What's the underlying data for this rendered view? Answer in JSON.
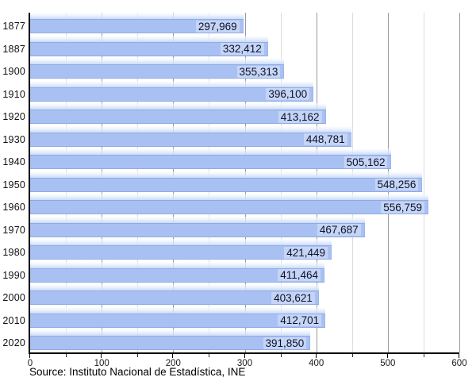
{
  "chart_data": {
    "type": "bar",
    "orientation": "horizontal",
    "title": "",
    "categories": [
      "1877",
      "1887",
      "1900",
      "1910",
      "1920",
      "1930",
      "1940",
      "1950",
      "1960",
      "1970",
      "1980",
      "1990",
      "2000",
      "2010",
      "2020"
    ],
    "values": [
      297969,
      332412,
      355313,
      396100,
      413162,
      448781,
      505162,
      548256,
      556759,
      467687,
      421449,
      411464,
      403621,
      412701,
      391850
    ],
    "value_labels": [
      "297,969",
      "332,412",
      "355,313",
      "396,100",
      "413,162",
      "448,781",
      "505,162",
      "548,256",
      "556,759",
      "467,687",
      "421,449",
      "411,464",
      "403,621",
      "412,701",
      "391,850"
    ],
    "xlim": [
      0,
      600000
    ],
    "x_major_ticks": [
      0,
      100000,
      200000,
      300000,
      400000,
      500000,
      600000
    ],
    "x_major_tick_labels": [
      "0",
      "100",
      "200",
      "300",
      "400",
      "500",
      "600"
    ],
    "x_minor_ticks": [
      50000,
      150000,
      250000,
      350000,
      450000,
      550000
    ],
    "grid": "vertical major and minor gridlines, no top/right frame",
    "legend": "none",
    "source": "Source: Instituto Nacional de Estadística, INE",
    "colors": {
      "bar_fill": "#a9c1f2",
      "bar_edge": "#91aae3",
      "bar_glow_top": "#ffffff",
      "bar_glow_bottom": "#c7d9f8",
      "grid_major": "#9a9a9a",
      "grid_minor": "#dcdcdc",
      "axis": "#000000",
      "value_text": "#101028"
    }
  }
}
